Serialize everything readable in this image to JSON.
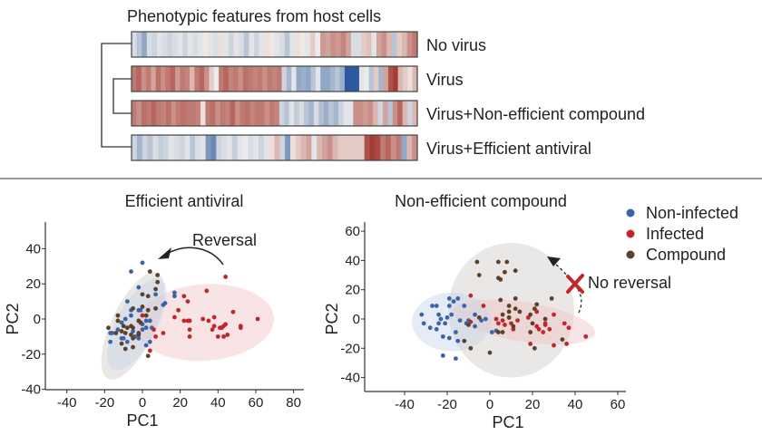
{
  "heatmap": {
    "title": "Phenotypic features from host cells",
    "rows": [
      {
        "label": "No virus",
        "values": [
          -0.15,
          -0.3,
          -0.5,
          -0.15,
          -0.2,
          -0.1,
          -0.15,
          -0.2,
          -0.15,
          -0.1,
          -0.2,
          -0.1,
          -0.15,
          -0.1,
          0.05,
          -0.1,
          -0.15,
          0.1,
          -0.1,
          -0.2,
          -0.1,
          -0.15,
          -0.3,
          -0.1,
          -0.2,
          -0.1,
          0.1,
          0.05,
          -0.1,
          -0.15,
          -0.3,
          -0.1,
          0.1,
          0.05,
          -0.1,
          0.2,
          -0.05,
          0.45,
          0.4,
          0.5,
          0.45,
          0.55,
          0.4,
          -0.15,
          -0.15,
          0.2,
          0.25,
          -0.1,
          0.4,
          0.5,
          0.3,
          -0.3,
          0.2,
          0.3,
          0.5,
          0.6
        ]
      },
      {
        "label": "Virus",
        "values": [
          0.6,
          0.7,
          0.5,
          0.6,
          0.4,
          0.65,
          0.5,
          0.6,
          0.7,
          0.45,
          0.6,
          0.55,
          0.3,
          0.6,
          0.7,
          0.5,
          0.2,
          -0.05,
          0.6,
          0.7,
          0.55,
          0.6,
          0.5,
          0.65,
          0.6,
          0.55,
          0.6,
          0.5,
          0.6,
          0.55,
          0.6,
          -0.2,
          -0.4,
          -0.1,
          -0.5,
          -0.45,
          -0.5,
          -0.3,
          -0.1,
          -0.5,
          -0.5,
          -0.4,
          -0.3,
          -0.45,
          -1,
          -1,
          -1,
          -0.1,
          -0.05,
          -0.3,
          0.2,
          -0.4,
          0.4,
          0.8,
          0.9,
          0.3,
          0.2,
          0.1,
          0.3
        ]
      },
      {
        "label": "Virus+Non-efficient compound",
        "values": [
          0.6,
          0.5,
          0.65,
          0.6,
          0.7,
          0.6,
          0.55,
          0.65,
          0.5,
          0.6,
          0.65,
          0.6,
          0.6,
          0.55,
          0.1,
          0.6,
          0.65,
          0.5,
          0.6,
          0.55,
          0.7,
          0.5,
          0.6,
          0.65,
          0.55,
          0.6,
          0.6,
          0.5,
          0.6,
          0.55,
          -0.2,
          -0.3,
          -0.1,
          -0.25,
          -0.15,
          -0.3,
          -0.4,
          -0.15,
          -0.35,
          -0.45,
          -0.3,
          -0.4,
          -0.2,
          -0.1,
          -0.1,
          0.5,
          0.5,
          0.45,
          0.5,
          0.3,
          -0.2,
          0.4,
          -0.3,
          0.5,
          0.7,
          0.3,
          -0.2,
          0.3
        ]
      },
      {
        "label": "Virus+Efficient antiviral",
        "values": [
          -0.2,
          -0.4,
          -0.2,
          -0.3,
          -0.15,
          -0.25,
          -0.2,
          -0.1,
          -0.15,
          -0.2,
          -0.1,
          -0.3,
          -0.15,
          -0.1,
          -0.6,
          -0.7,
          -0.2,
          -0.15,
          -0.1,
          -0.25,
          -0.1,
          -0.05,
          -0.15,
          -0.1,
          -0.2,
          -0.1,
          0.1,
          0.3,
          -0.2,
          -0.6,
          0.1,
          0.2,
          0.3,
          0.4,
          -0.1,
          0.3,
          0.4,
          0.5,
          0.3,
          0.2,
          0.2,
          0.2,
          0.2,
          0.2,
          0.8,
          0.9,
          0.85,
          0.6,
          0.7,
          0.5,
          0.6,
          -0.5,
          0.3,
          0.5
        ]
      }
    ],
    "colorscale": {
      "low": "#2c5a9c",
      "mid": "#f6f3ef",
      "high": "#9b2a20"
    }
  },
  "legend": [
    {
      "label": "Non-infected",
      "color": "#3b64a8"
    },
    {
      "label": "Infected",
      "color": "#c0272d"
    },
    {
      "label": "Compound",
      "color": "#5e4028"
    }
  ],
  "chart_data": [
    {
      "type": "scatter",
      "title": "Efficient antiviral",
      "xlabel": "PC1",
      "ylabel": "PC2",
      "xlim": [
        -50,
        85
      ],
      "ylim": [
        -40,
        50
      ],
      "xticks": [
        "-40",
        "-20",
        "0",
        "20",
        "40",
        "60",
        "80"
      ],
      "yticks": [
        "40",
        "20",
        "0",
        "-20",
        "-40"
      ],
      "annotation": "Reversal",
      "series": [
        {
          "name": "Non-infected",
          "color": "#3b64a8",
          "ellipse": {
            "cx": -3,
            "cy": -3,
            "a": 28,
            "b": 11,
            "angle_deg": -62
          },
          "points": [
            [
              0,
              32
            ],
            [
              -6,
              27
            ],
            [
              -2,
              18
            ],
            [
              7,
              14
            ],
            [
              17,
              15
            ],
            [
              17,
              13
            ],
            [
              12,
              9
            ],
            [
              11,
              8
            ],
            [
              -8,
              10
            ],
            [
              -6,
              5
            ],
            [
              -2,
              5
            ],
            [
              -1,
              5
            ],
            [
              -6,
              2
            ],
            [
              -9,
              0
            ],
            [
              -11,
              -2
            ],
            [
              2,
              -1
            ],
            [
              4,
              -1
            ],
            [
              5,
              -5
            ],
            [
              2,
              -5
            ],
            [
              0,
              -6
            ],
            [
              -17,
              -8
            ],
            [
              -16,
              -8
            ],
            [
              -17,
              -13
            ],
            [
              -11,
              -11
            ],
            [
              -8,
              -13
            ],
            [
              -4,
              -10
            ],
            [
              -2,
              -11
            ],
            [
              2,
              -15
            ],
            [
              4,
              -13
            ],
            [
              7,
              6
            ],
            [
              0,
              -3
            ],
            [
              -5,
              -7
            ],
            [
              -10,
              -11
            ],
            [
              -13,
              -6
            ]
          ]
        },
        {
          "name": "Infected",
          "color": "#c0272d",
          "ellipse": {
            "cx": 33,
            "cy": -2,
            "a": 38,
            "b": 21,
            "angle_deg": -4
          },
          "points": [
            [
              44,
              24
            ],
            [
              34,
              16
            ],
            [
              22,
              13
            ],
            [
              24,
              10
            ],
            [
              19,
              5
            ],
            [
              17,
              1
            ],
            [
              22,
              -1
            ],
            [
              24,
              -1
            ],
            [
              25,
              -1
            ],
            [
              25,
              -6
            ],
            [
              25,
              -10
            ],
            [
              32,
              0
            ],
            [
              35,
              -1
            ],
            [
              38,
              1
            ],
            [
              38,
              -4
            ],
            [
              37,
              -6
            ],
            [
              40,
              -10
            ],
            [
              41,
              -5
            ],
            [
              42,
              -5
            ],
            [
              43,
              -4
            ],
            [
              44,
              -3
            ],
            [
              43,
              -10
            ],
            [
              45,
              -9
            ],
            [
              48,
              4
            ],
            [
              52,
              -4
            ],
            [
              52,
              -5
            ],
            [
              61,
              0
            ],
            [
              0,
              2
            ],
            [
              6,
              -6
            ],
            [
              7,
              -10
            ],
            [
              11,
              -8
            ],
            [
              4,
              -18
            ]
          ]
        },
        {
          "name": "Compound",
          "color": "#5e4028",
          "ellipse": {
            "cx": -5,
            "cy": -4,
            "a": 32,
            "b": 12,
            "angle_deg": -65
          },
          "points": [
            [
              4,
              27
            ],
            [
              8,
              25
            ],
            [
              8,
              21
            ],
            [
              7,
              17
            ],
            [
              0,
              14
            ],
            [
              3,
              13
            ],
            [
              0,
              7
            ],
            [
              3,
              5
            ],
            [
              7,
              6
            ],
            [
              -5,
              6
            ],
            [
              -13,
              2
            ],
            [
              -13,
              -1
            ],
            [
              -10,
              -4
            ],
            [
              -8,
              -5
            ],
            [
              -6,
              -4
            ],
            [
              -5,
              -5
            ],
            [
              -2,
              -1
            ],
            [
              -1,
              -2
            ],
            [
              -18,
              -5
            ],
            [
              -14,
              -8
            ],
            [
              -11,
              -7
            ],
            [
              -9,
              -8
            ],
            [
              -6,
              -9
            ],
            [
              -5,
              -11
            ],
            [
              -2,
              -8
            ],
            [
              -11,
              -14
            ],
            [
              -9,
              -17
            ],
            [
              -5,
              -16
            ],
            [
              3,
              -21
            ],
            [
              -2,
              -9
            ],
            [
              2,
              2
            ]
          ]
        }
      ]
    },
    {
      "type": "scatter",
      "title": "Non-efficient compound",
      "xlabel": "PC1",
      "ylabel": "PC2",
      "xlim": [
        -58,
        64
      ],
      "ylim": [
        -50,
        66
      ],
      "xticks": [
        "-40",
        "-20",
        "0",
        "20",
        "40",
        "60"
      ],
      "yticks": [
        "60",
        "40",
        "20",
        "0",
        "-20",
        "-40"
      ],
      "annotation": "No reversal",
      "series": [
        {
          "name": "Non-infected",
          "color": "#3b64a8",
          "ellipse": {
            "cx": -18,
            "cy": -2,
            "a": 18.5,
            "b": 20,
            "angle_deg": 0
          },
          "points": [
            [
              -32,
              3
            ],
            [
              -31,
              -3
            ],
            [
              -27,
              9
            ],
            [
              -25,
              9
            ],
            [
              -24,
              3
            ],
            [
              -23,
              0
            ],
            [
              -21,
              -3
            ],
            [
              -28,
              -6
            ],
            [
              -25,
              -7
            ],
            [
              -22,
              -12
            ],
            [
              -19,
              -13
            ],
            [
              -15,
              -15
            ],
            [
              -19,
              14
            ],
            [
              -15,
              14
            ],
            [
              -19,
              9
            ],
            [
              -17,
              12
            ],
            [
              -12,
              9
            ],
            [
              -14,
              -1
            ],
            [
              -11,
              -3
            ],
            [
              -10,
              -1
            ],
            [
              -7,
              3
            ],
            [
              -7,
              -5
            ],
            [
              -4,
              -1
            ],
            [
              -2,
              0
            ],
            [
              -22,
              -25
            ],
            [
              -16,
              -27
            ],
            [
              -18,
              3
            ],
            [
              -20,
              1
            ],
            [
              -24,
              -3
            ],
            [
              1,
              -9
            ],
            [
              3,
              -8
            ],
            [
              -16,
              -9
            ]
          ]
        },
        {
          "name": "Infected",
          "color": "#c0272d",
          "ellipse": {
            "cx": 16,
            "cy": -2,
            "a": 40,
            "b": 11,
            "angle_deg": 9
          },
          "points": [
            [
              -9,
              16
            ],
            [
              -3,
              9
            ],
            [
              -9,
              -2
            ],
            [
              3,
              0
            ],
            [
              6,
              -1
            ],
            [
              9,
              1
            ],
            [
              10,
              -3
            ],
            [
              7,
              -4
            ],
            [
              11,
              -7
            ],
            [
              18,
              1
            ],
            [
              22,
              5
            ],
            [
              22,
              -5
            ],
            [
              23,
              -7
            ],
            [
              25,
              -9
            ],
            [
              26,
              -3
            ],
            [
              26,
              -4
            ],
            [
              28,
              -7
            ],
            [
              30,
              3
            ],
            [
              35,
              -3
            ],
            [
              37,
              -6
            ],
            [
              30,
              -18
            ],
            [
              36,
              -17
            ],
            [
              45,
              -12
            ],
            [
              19,
              -17
            ],
            [
              4,
              -3
            ],
            [
              13,
              -1
            ]
          ]
        },
        {
          "name": "Compound",
          "color": "#5e4028",
          "ellipse": {
            "cx": 10,
            "cy": 6,
            "a": 29.5,
            "b": 46,
            "angle_deg": 0
          },
          "points": [
            [
              -6,
              39
            ],
            [
              4,
              39
            ],
            [
              8,
              39
            ],
            [
              -5,
              30
            ],
            [
              7,
              32
            ],
            [
              12,
              33
            ],
            [
              4,
              28
            ],
            [
              5,
              27
            ],
            [
              12,
              14
            ],
            [
              5,
              13
            ],
            [
              22,
              10
            ],
            [
              29,
              14
            ],
            [
              9,
              9
            ],
            [
              12,
              7
            ],
            [
              14,
              5
            ],
            [
              19,
              3
            ],
            [
              21,
              7
            ],
            [
              6,
              3
            ],
            [
              9,
              5
            ],
            [
              9,
              1
            ],
            [
              11,
              -5
            ],
            [
              4,
              -9
            ],
            [
              6,
              -9
            ],
            [
              20,
              -3
            ],
            [
              19,
              -9
            ],
            [
              26,
              0
            ],
            [
              34,
              -14
            ],
            [
              21,
              -20
            ],
            [
              0,
              -23
            ],
            [
              -9,
              -20
            ],
            [
              -12,
              -15
            ],
            [
              -10,
              -4
            ],
            [
              -5,
              1
            ]
          ]
        }
      ]
    }
  ]
}
